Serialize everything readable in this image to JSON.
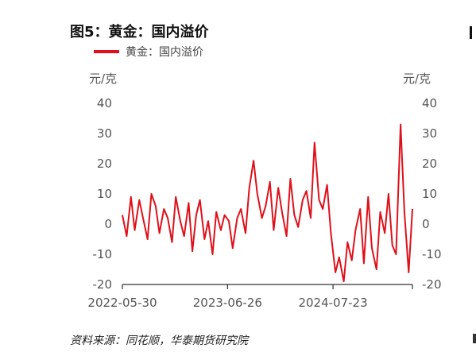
{
  "figure": {
    "title": "图5：黄金：国内溢价",
    "source": "资料来源：同花顺，华泰期货研究院"
  },
  "chart_data": {
    "type": "line",
    "title": "图5：黄金：国内溢价",
    "y_unit_left": "元/克",
    "y_unit_right": "元/克",
    "ylim": [
      -20,
      40
    ],
    "y_ticks": [
      40,
      30,
      20,
      10,
      0,
      -10,
      -20
    ],
    "y_tick_labels": [
      "40",
      "30",
      "20",
      "10",
      "0",
      "-10",
      "-20"
    ],
    "x_ticks": [
      "2022-05-30",
      "2023-06-26",
      "2024-07-23"
    ],
    "xlim": [
      "2022-05-30",
      "2025-05-15"
    ],
    "legend_position": "top-left",
    "grid": false,
    "series": [
      {
        "name": "黄金：国内溢价",
        "color": "#e0101a",
        "x": [
          "2022-05-30",
          "2022-06-15",
          "2022-07-01",
          "2022-07-15",
          "2022-08-01",
          "2022-08-15",
          "2022-09-01",
          "2022-09-15",
          "2022-10-01",
          "2022-10-15",
          "2022-11-01",
          "2022-11-15",
          "2022-12-01",
          "2022-12-15",
          "2023-01-01",
          "2023-01-15",
          "2023-02-01",
          "2023-02-15",
          "2023-03-01",
          "2023-03-15",
          "2023-04-01",
          "2023-04-15",
          "2023-05-01",
          "2023-05-15",
          "2023-06-01",
          "2023-06-15",
          "2023-07-01",
          "2023-07-15",
          "2023-08-01",
          "2023-08-15",
          "2023-09-01",
          "2023-09-15",
          "2023-10-01",
          "2023-10-15",
          "2023-11-01",
          "2023-11-15",
          "2023-12-01",
          "2023-12-15",
          "2024-01-01",
          "2024-01-15",
          "2024-02-01",
          "2024-02-15",
          "2024-03-01",
          "2024-03-15",
          "2024-04-01",
          "2024-04-15",
          "2024-05-01",
          "2024-05-15",
          "2024-06-01",
          "2024-06-15",
          "2024-07-01",
          "2024-07-15",
          "2024-08-01",
          "2024-08-15",
          "2024-09-01",
          "2024-09-15",
          "2024-10-01",
          "2024-10-15",
          "2024-11-01",
          "2024-11-15",
          "2024-12-01",
          "2024-12-15",
          "2025-01-01",
          "2025-01-15",
          "2025-02-01",
          "2025-02-15",
          "2025-03-01",
          "2025-03-15",
          "2025-04-01",
          "2025-04-15",
          "2025-05-01",
          "2025-05-15"
        ],
        "y": [
          3,
          -4,
          9,
          -2,
          8,
          2,
          -5,
          10,
          6,
          -3,
          5,
          2,
          -6,
          9,
          1,
          -4,
          7,
          -9,
          3,
          8,
          -5,
          1,
          -10,
          4,
          -2,
          3,
          1,
          -8,
          2,
          5,
          -3,
          12,
          21,
          10,
          2,
          6,
          14,
          -2,
          12,
          4,
          -4,
          15,
          3,
          -1,
          8,
          11,
          2,
          27,
          8,
          5,
          13,
          -3,
          -16,
          -11,
          -19,
          -6,
          -12,
          -2,
          5,
          -13,
          9,
          -8,
          -15,
          4,
          -3,
          10,
          -7,
          -10,
          33,
          4,
          -16,
          5
        ]
      }
    ]
  }
}
